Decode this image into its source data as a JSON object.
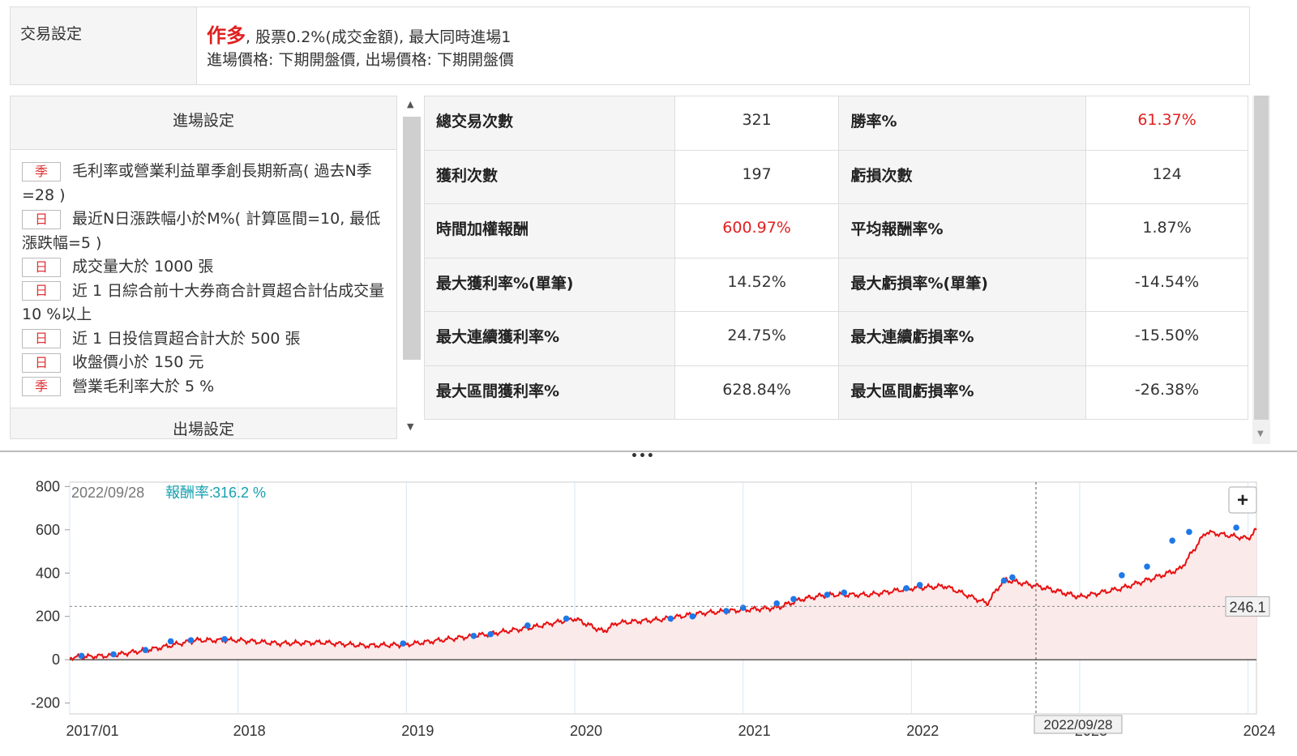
{
  "trade_settings": {
    "label": "交易設定",
    "direction": "作多",
    "line1_rest": ", 股票0.2%(成交金額), 最大同時進場1",
    "line2": "進場價格: 下期開盤價, 出場價格: 下期開盤價"
  },
  "entry_settings": {
    "title": "進場設定",
    "conditions": [
      {
        "tag": "季",
        "text": "毛利率或營業利益單季創長期新高( 過去N季=28 )"
      },
      {
        "tag": "日",
        "text": "最近N日漲跌幅小於M%( 計算區間=10, 最低漲跌幅=5 )"
      },
      {
        "tag": "日",
        "text": "成交量大於 1000 張"
      },
      {
        "tag": "日",
        "text": "近 1 日綜合前十大券商合計買超合計佔成交量 10 %以上"
      },
      {
        "tag": "日",
        "text": "近 1 日投信買超合計大於 500 張"
      },
      {
        "tag": "日",
        "text": "收盤價小於 150 元"
      },
      {
        "tag": "季",
        "text": "營業毛利率大於 5 %"
      }
    ],
    "exit_title": "出場設定"
  },
  "stats": [
    {
      "k1": "總交易次數",
      "v1": "321",
      "k2": "勝率%",
      "v2": "61.37%",
      "v2red": true
    },
    {
      "k1": "獲利次數",
      "v1": "197",
      "k2": "虧損次數",
      "v2": "124"
    },
    {
      "k1": "時間加權報酬",
      "v1": "600.97%",
      "v1red": true,
      "k2": "平均報酬率%",
      "v2": "1.87%"
    },
    {
      "k1": "最大獲利率%(單筆)",
      "v1": "14.52%",
      "k2": "最大虧損率%(單筆)",
      "v2": "-14.54%"
    },
    {
      "k1": "最大連續獲利率%",
      "v1": "24.75%",
      "k2": "最大連續虧損率%",
      "v2": "-15.50%"
    },
    {
      "k1": "最大區間獲利率%",
      "v1": "628.84%",
      "k2": "最大區間虧損率%",
      "v2": "-26.38%"
    }
  ],
  "chart_data": {
    "type": "area",
    "hover_date": "2022/09/28",
    "hover_label": "報酬率:",
    "hover_value": "316.2 %",
    "crosshair_y_label": "246.1",
    "crosshair_x_label": "2022/09/28",
    "zoom_button": "+",
    "y_ticks": [
      "800",
      "600",
      "400",
      "200",
      "0",
      "-200"
    ],
    "x_ticks": [
      "2017/01",
      "2018",
      "2019",
      "2020",
      "2021",
      "2022",
      "2023",
      "2024"
    ],
    "ylim": [
      -250,
      820
    ],
    "xlim": [
      2017.0,
      2024.05
    ],
    "crosshair_x": 2022.74,
    "crosshair_y": 246.1,
    "line_color": "#e81010",
    "fill_color": "#fbeaea",
    "marker_color": "#1f78e8",
    "x": [
      2017.0,
      2017.25,
      2017.5,
      2017.75,
      2018.0,
      2018.25,
      2018.5,
      2018.75,
      2019.0,
      2019.25,
      2019.5,
      2019.75,
      2020.0,
      2020.17,
      2020.25,
      2020.5,
      2020.75,
      2021.0,
      2021.2,
      2021.35,
      2021.5,
      2021.75,
      2022.0,
      2022.2,
      2022.45,
      2022.55,
      2022.75,
      2022.9,
      2023.0,
      2023.25,
      2023.45,
      2023.6,
      2023.75,
      2024.0,
      2024.05
    ],
    "y": [
      10,
      20,
      50,
      90,
      90,
      75,
      80,
      65,
      70,
      95,
      120,
      150,
      190,
      130,
      170,
      185,
      215,
      230,
      240,
      280,
      300,
      300,
      330,
      340,
      260,
      370,
      340,
      310,
      290,
      330,
      380,
      420,
      590,
      560,
      600
    ],
    "markers": [
      [
        2017.07,
        18
      ],
      [
        2017.26,
        25
      ],
      [
        2017.45,
        45
      ],
      [
        2017.6,
        85
      ],
      [
        2017.72,
        90
      ],
      [
        2017.92,
        95
      ],
      [
        2018.98,
        75
      ],
      [
        2019.4,
        110
      ],
      [
        2019.5,
        118
      ],
      [
        2019.72,
        158
      ],
      [
        2019.95,
        190
      ],
      [
        2020.57,
        190
      ],
      [
        2020.7,
        200
      ],
      [
        2020.9,
        225
      ],
      [
        2021.0,
        240
      ],
      [
        2021.2,
        260
      ],
      [
        2021.3,
        280
      ],
      [
        2021.5,
        300
      ],
      [
        2021.6,
        310
      ],
      [
        2021.97,
        330
      ],
      [
        2022.05,
        345
      ],
      [
        2022.55,
        365
      ],
      [
        2022.6,
        380
      ],
      [
        2023.25,
        390
      ],
      [
        2023.4,
        430
      ],
      [
        2023.55,
        550
      ],
      [
        2023.65,
        590
      ],
      [
        2023.93,
        610
      ]
    ]
  }
}
